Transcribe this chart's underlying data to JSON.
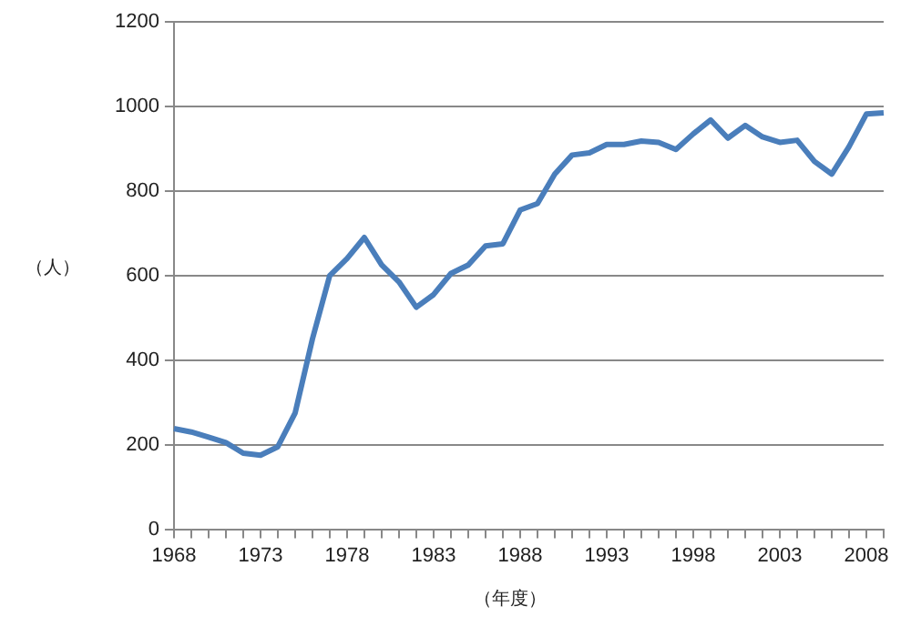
{
  "chart_data": {
    "type": "line",
    "xlabel": "（年度）",
    "ylabel": "（人）",
    "categories": [
      "1968",
      null,
      null,
      null,
      null,
      "1973",
      null,
      null,
      null,
      null,
      "1978",
      null,
      null,
      null,
      null,
      "1983",
      null,
      null,
      null,
      null,
      "1988",
      null,
      null,
      null,
      null,
      "1993",
      null,
      null,
      null,
      null,
      "1998",
      null,
      null,
      null,
      null,
      "2003",
      null,
      null,
      null,
      null,
      "2008",
      null
    ],
    "series": [
      {
        "color": "#4a7ebb",
        "values": [
          238,
          230,
          218,
          205,
          180,
          175,
          195,
          275,
          450,
          600,
          640,
          690,
          625,
          585,
          525,
          555,
          605,
          625,
          670,
          675,
          755,
          770,
          840,
          885,
          890,
          910,
          910,
          918,
          915,
          898,
          935,
          968,
          925,
          955,
          928,
          915,
          920,
          870,
          840,
          905,
          982,
          985
        ]
      }
    ],
    "ylim": [
      0,
      1200
    ],
    "yticks": [
      0,
      200,
      400,
      600,
      800,
      1000,
      1200
    ],
    "grid": "y",
    "legend": false,
    "marker": "none",
    "line_style": "solid"
  }
}
